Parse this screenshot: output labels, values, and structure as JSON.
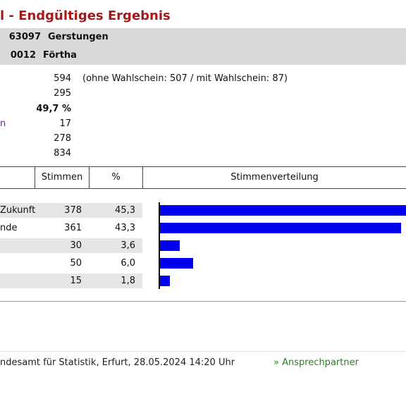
{
  "title": "l - Endgültiges Ergebnis",
  "region": {
    "rows": [
      {
        "code": "63097",
        "name": "Gerstungen"
      },
      {
        "code": "0012",
        "name": "Förtha"
      }
    ]
  },
  "stats": [
    {
      "label": "",
      "value": "594",
      "note": "(ohne Wahlschein: 507 / mit Wahlschein: 87)",
      "bold": false
    },
    {
      "label": "",
      "value": "295",
      "note": "",
      "bold": false
    },
    {
      "label": "",
      "value": "49,7 %",
      "note": "",
      "bold": true
    },
    {
      "label": "n",
      "value": "17",
      "note": "",
      "bold": false
    },
    {
      "label": "",
      "value": "278",
      "note": "",
      "bold": false
    },
    {
      "label": "",
      "value": "834",
      "note": "",
      "bold": false
    }
  ],
  "table": {
    "headers": {
      "votes": "Stimmen",
      "percent": "%",
      "distribution": "Stimmenverteilung"
    },
    "rows": [
      {
        "party": "Zukunft",
        "votes": "378",
        "percent": "45,3",
        "share": 45.3
      },
      {
        "party": "nde",
        "votes": "361",
        "percent": "43,3",
        "share": 43.3
      },
      {
        "party": "",
        "votes": "30",
        "percent": "3,6",
        "share": 3.6
      },
      {
        "party": "",
        "votes": "50",
        "percent": "6,0",
        "share": 6.0
      },
      {
        "party": "",
        "votes": "15",
        "percent": "1,8",
        "share": 1.8
      }
    ]
  },
  "footer": {
    "source": "ndesamt für Statistik, Erfurt, 28.05.2024 14:20 Uhr",
    "link": "» Ansprechpartner"
  },
  "colors": {
    "title": "#a01c1c",
    "bar": "#0000ee",
    "link": "#2a7d2a",
    "band": "#d9d9d9"
  }
}
